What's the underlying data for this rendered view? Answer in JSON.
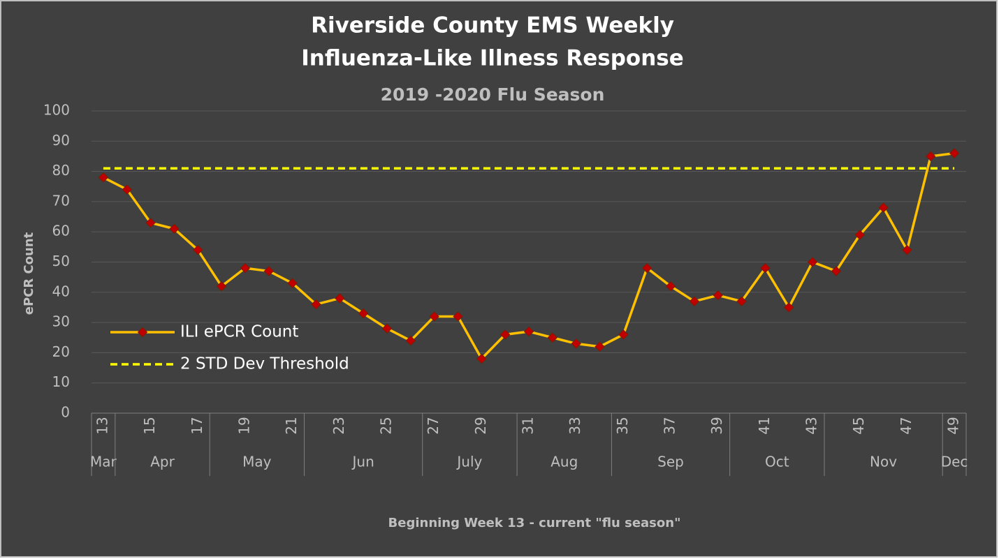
{
  "chart_data": {
    "type": "line",
    "title": [
      "Riverside County EMS Weekly",
      "Influenza-Like Illness Response"
    ],
    "subtitle": "2019 -2020 Flu Season",
    "x_label": "Beginning Week 13 - current \"flu season\"",
    "y_label": "ePCR Count",
    "categories": [
      "13",
      null,
      "15",
      null,
      "17",
      null,
      "19",
      null,
      "21",
      null,
      "23",
      null,
      "25",
      null,
      "27",
      null,
      "29",
      null,
      "31",
      null,
      "33",
      null,
      "35",
      null,
      "37",
      null,
      "39",
      null,
      "41",
      null,
      "43",
      null,
      "45",
      null,
      "47",
      null,
      "49"
    ],
    "months": [
      "Mar",
      "Apr",
      null,
      null,
      null,
      "May",
      null,
      null,
      null,
      "Jun",
      null,
      null,
      null,
      null,
      "July",
      null,
      null,
      null,
      "Aug",
      null,
      null,
      null,
      "Sep",
      null,
      null,
      null,
      null,
      "Oct",
      null,
      null,
      null,
      "Nov",
      null,
      null,
      null,
      null,
      "Dec"
    ],
    "series": [
      {
        "name": "ILI ePCR Count",
        "color": "#ffc000",
        "marker_color": "#c00000",
        "dashed": false,
        "values": [
          78,
          74,
          63,
          61,
          54,
          42,
          48,
          47,
          43,
          36,
          38,
          33,
          28,
          24,
          32,
          32,
          18,
          26,
          27,
          25,
          23,
          22,
          26,
          48,
          42,
          37,
          39,
          37,
          48,
          35,
          50,
          47,
          59,
          68,
          54,
          85,
          86
        ]
      },
      {
        "name": "2 STD Dev Threshold",
        "color": "#ffff00",
        "marker_color": null,
        "dashed": true,
        "values": [
          81,
          81,
          81,
          81,
          81,
          81,
          81,
          81,
          81,
          81,
          81,
          81,
          81,
          81,
          81,
          81,
          81,
          81,
          81,
          81,
          81,
          81,
          81,
          81,
          81,
          81,
          81,
          81,
          81,
          81,
          81,
          81,
          81,
          81,
          81,
          81,
          81
        ]
      }
    ],
    "ylim": [
      0,
      100
    ],
    "yticks": [
      0,
      10,
      20,
      30,
      40,
      50,
      60,
      70,
      80,
      90,
      100
    ],
    "grid": true,
    "legend": "left"
  }
}
